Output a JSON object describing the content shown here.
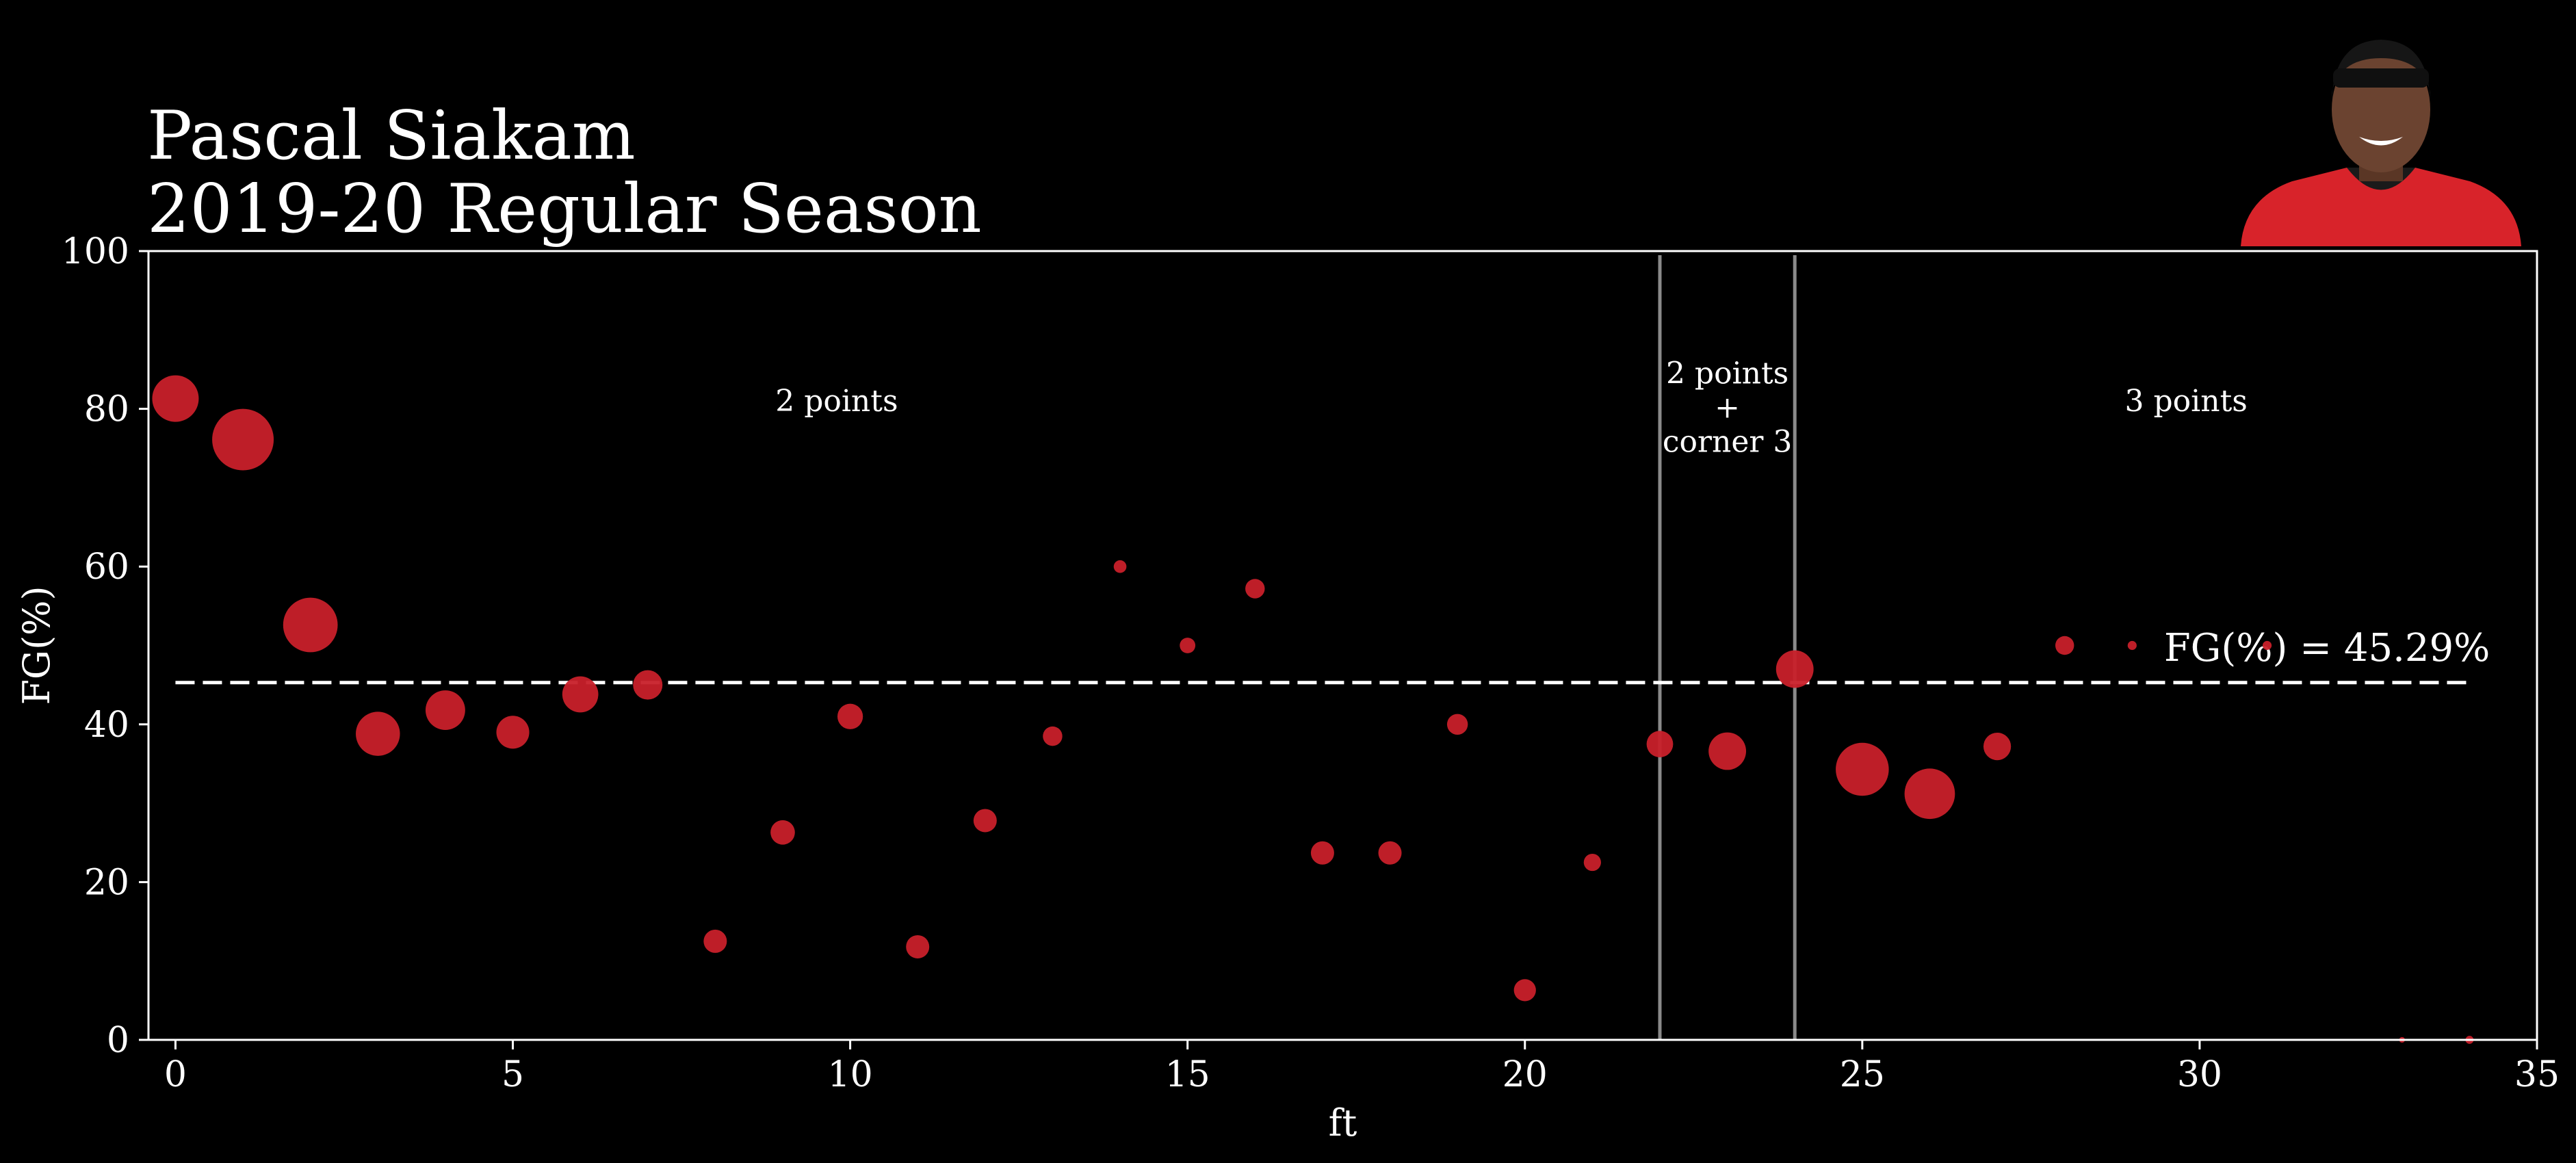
{
  "title": "Pascal Siakam",
  "subtitle": "2019-20 Regular Season",
  "colors": {
    "background": "#000000",
    "marker": "#c8202a",
    "axis": "#ffffff",
    "zone_line": "#8a8a8a"
  },
  "photo": {
    "icon": "player-headshot"
  },
  "chart_data": {
    "type": "scatter",
    "xlabel": "ft",
    "ylabel": "FG(%)",
    "xlim": [
      -0.4,
      35
    ],
    "ylim": [
      0,
      100
    ],
    "xticks": [
      0,
      5,
      10,
      15,
      20,
      25,
      30,
      35
    ],
    "yticks": [
      0,
      20,
      40,
      60,
      80,
      100
    ],
    "grid": false,
    "points": [
      {
        "x": 0,
        "y": 81.3,
        "size": 4
      },
      {
        "x": 1,
        "y": 76.1,
        "size": 7
      },
      {
        "x": 2,
        "y": 52.6,
        "size": 5.5
      },
      {
        "x": 3,
        "y": 38.8,
        "size": 3.6
      },
      {
        "x": 4,
        "y": 41.8,
        "size": 2.9
      },
      {
        "x": 5,
        "y": 39.0,
        "size": 2.0
      },
      {
        "x": 6,
        "y": 43.8,
        "size": 2.4
      },
      {
        "x": 7,
        "y": 45.0,
        "size": 1.6
      },
      {
        "x": 8,
        "y": 12.5,
        "size": 1.0
      },
      {
        "x": 9,
        "y": 26.3,
        "size": 1.1
      },
      {
        "x": 10,
        "y": 41.0,
        "size": 1.2
      },
      {
        "x": 11,
        "y": 11.8,
        "size": 1.0
      },
      {
        "x": 12,
        "y": 27.8,
        "size": 1.0
      },
      {
        "x": 13,
        "y": 38.5,
        "size": 0.7
      },
      {
        "x": 14,
        "y": 60.0,
        "size": 0.3
      },
      {
        "x": 15,
        "y": 50.0,
        "size": 0.45
      },
      {
        "x": 16,
        "y": 57.2,
        "size": 0.7
      },
      {
        "x": 17,
        "y": 23.7,
        "size": 1.0
      },
      {
        "x": 18,
        "y": 23.7,
        "size": 1.0
      },
      {
        "x": 19,
        "y": 40.0,
        "size": 0.8
      },
      {
        "x": 20,
        "y": 6.3,
        "size": 0.9
      },
      {
        "x": 21,
        "y": 22.5,
        "size": 0.55
      },
      {
        "x": 22,
        "y": 37.5,
        "size": 1.3
      },
      {
        "x": 23,
        "y": 36.6,
        "size": 2.6
      },
      {
        "x": 24,
        "y": 47.0,
        "size": 2.6
      },
      {
        "x": 25,
        "y": 34.3,
        "size": 5.2
      },
      {
        "x": 26,
        "y": 31.2,
        "size": 4.7
      },
      {
        "x": 27,
        "y": 37.2,
        "size": 1.4
      },
      {
        "x": 28,
        "y": 50.0,
        "size": 0.65
      },
      {
        "x": 29,
        "y": 50.0,
        "size": 0.15
      },
      {
        "x": 31,
        "y": 50.0,
        "size": 0.15
      },
      {
        "x": 33,
        "y": 0.0,
        "size": 0.06
      },
      {
        "x": 34,
        "y": 0.0,
        "size": 0.12
      }
    ],
    "average_line": {
      "y": 45.29,
      "x_start": 0,
      "x_end": 34,
      "label": "FG(%) = 45.29%"
    },
    "zone_lines": [
      22,
      24
    ],
    "annotations": [
      {
        "lines": [
          "2 points"
        ],
        "x": 9.8,
        "y": 81
      },
      {
        "lines": [
          "2 points",
          "+",
          "corner 3"
        ],
        "x": 23,
        "y": 84.5
      },
      {
        "lines": [
          "3 points"
        ],
        "x": 29.8,
        "y": 81
      }
    ]
  }
}
